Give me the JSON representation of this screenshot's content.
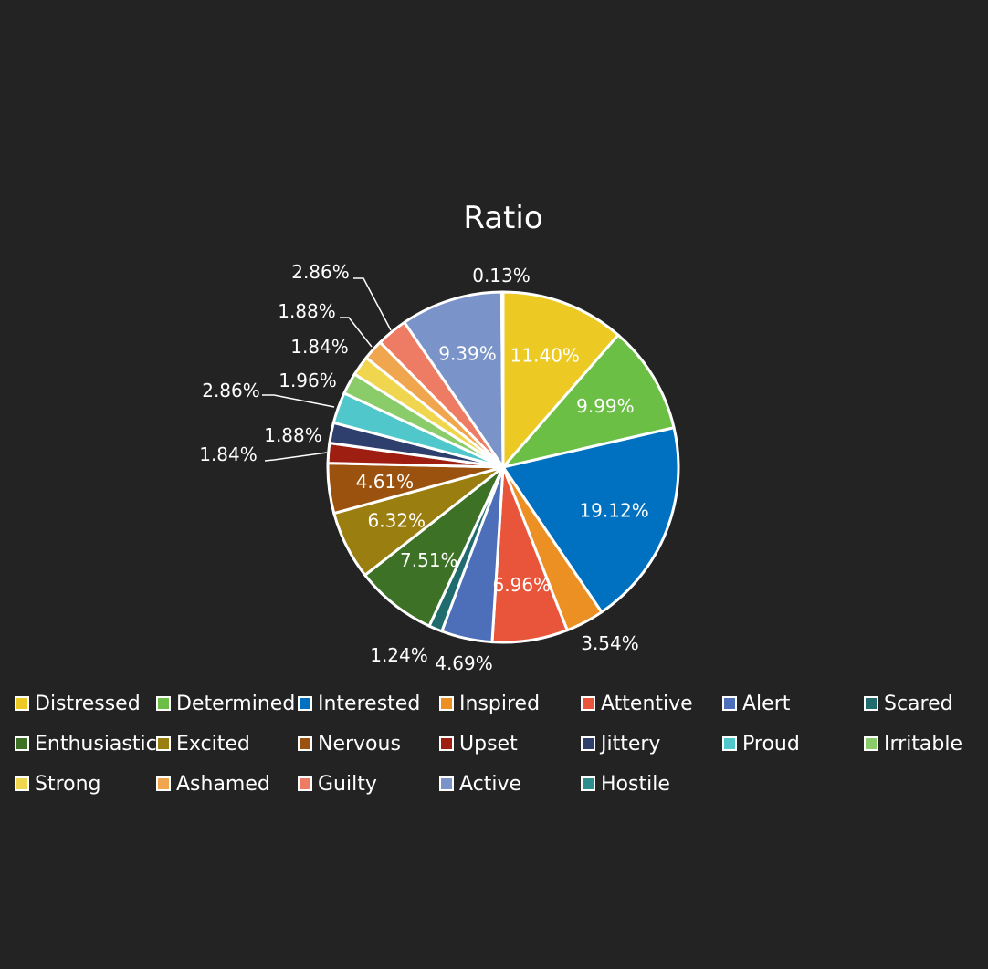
{
  "chart_data": {
    "type": "pie",
    "title": "Ratio",
    "slices": [
      {
        "name": "Distressed",
        "value": 11.4,
        "label": "11.40%",
        "color": "#EDC924"
      },
      {
        "name": "Determined",
        "value": 9.99,
        "label": "9.99%",
        "color": "#6CBF45"
      },
      {
        "name": "Interested",
        "value": 19.12,
        "label": "19.12%",
        "color": "#0070C0"
      },
      {
        "name": "Inspired",
        "value": 3.54,
        "label": "3.54%",
        "color": "#ED9023"
      },
      {
        "name": "Attentive",
        "value": 6.96,
        "label": "6.96%",
        "color": "#E8553A"
      },
      {
        "name": "Alert",
        "value": 4.69,
        "label": "4.69%",
        "color": "#4D6EB8"
      },
      {
        "name": "Scared",
        "value": 1.24,
        "label": "1.24%",
        "color": "#1F6B6E"
      },
      {
        "name": "Enthusiastic",
        "value": 7.51,
        "label": "7.51%",
        "color": "#3D7226"
      },
      {
        "name": "Excited",
        "value": 6.32,
        "label": "6.32%",
        "color": "#9A7E0F"
      },
      {
        "name": "Nervous",
        "value": 4.61,
        "label": "4.61%",
        "color": "#9B520F"
      },
      {
        "name": "Upset",
        "value": 1.84,
        "label": "1.84%",
        "color": "#9E1F12"
      },
      {
        "name": "Jittery",
        "value": 1.88,
        "label": "1.88%",
        "color": "#2E3F6E"
      },
      {
        "name": "Proud",
        "value": 2.86,
        "label": "2.86%",
        "color": "#4FC7CB"
      },
      {
        "name": "Irritable",
        "value": 1.96,
        "label": "1.96%",
        "color": "#8ACB6A"
      },
      {
        "name": "Strong",
        "value": 1.84,
        "label": "1.84%",
        "color": "#F0D64F"
      },
      {
        "name": "Ashamed",
        "value": 1.88,
        "label": "1.88%",
        "color": "#F0A64F"
      },
      {
        "name": "Guilty",
        "value": 2.86,
        "label": "2.86%",
        "color": "#EE7B63"
      },
      {
        "name": "Active",
        "value": 9.39,
        "label": "9.39%",
        "color": "#7A93C8"
      },
      {
        "name": "Hostile",
        "value": 0.13,
        "label": "0.13%",
        "color": "#2E8E8E"
      }
    ],
    "legend_position": "bottom"
  }
}
